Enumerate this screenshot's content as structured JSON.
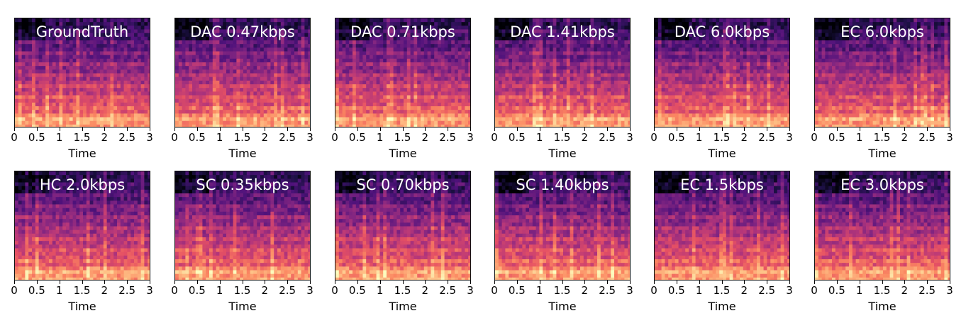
{
  "chart_data": {
    "type": "heatmap",
    "colormap": "magma",
    "x_axis": {
      "label": "Time",
      "range": [
        0,
        3
      ],
      "ticks": [
        0,
        0.5,
        1,
        1.5,
        2,
        2.5,
        3
      ],
      "tick_labels": [
        "0",
        "0.5",
        "1",
        "1.5",
        "2",
        "2.5",
        "3"
      ]
    },
    "panels": [
      {
        "title": "GroundTruth",
        "xlabel": "Time"
      },
      {
        "title": "DAC 0.47kbps",
        "xlabel": "Time"
      },
      {
        "title": "DAC 0.71kbps",
        "xlabel": "Time"
      },
      {
        "title": "DAC 1.41kbps",
        "xlabel": "Time"
      },
      {
        "title": "DAC 6.0kbps",
        "xlabel": "Time"
      },
      {
        "title": "EC 6.0kbps",
        "xlabel": "Time"
      },
      {
        "title": "HC 2.0kbps",
        "xlabel": "Time"
      },
      {
        "title": "SC 0.35kbps",
        "xlabel": "Time"
      },
      {
        "title": "SC 0.70kbps",
        "xlabel": "Time"
      },
      {
        "title": "SC 1.40kbps",
        "xlabel": "Time"
      },
      {
        "title": "EC 1.5kbps",
        "xlabel": "Time"
      },
      {
        "title": "EC 3.0kbps",
        "xlabel": "Time"
      }
    ]
  }
}
